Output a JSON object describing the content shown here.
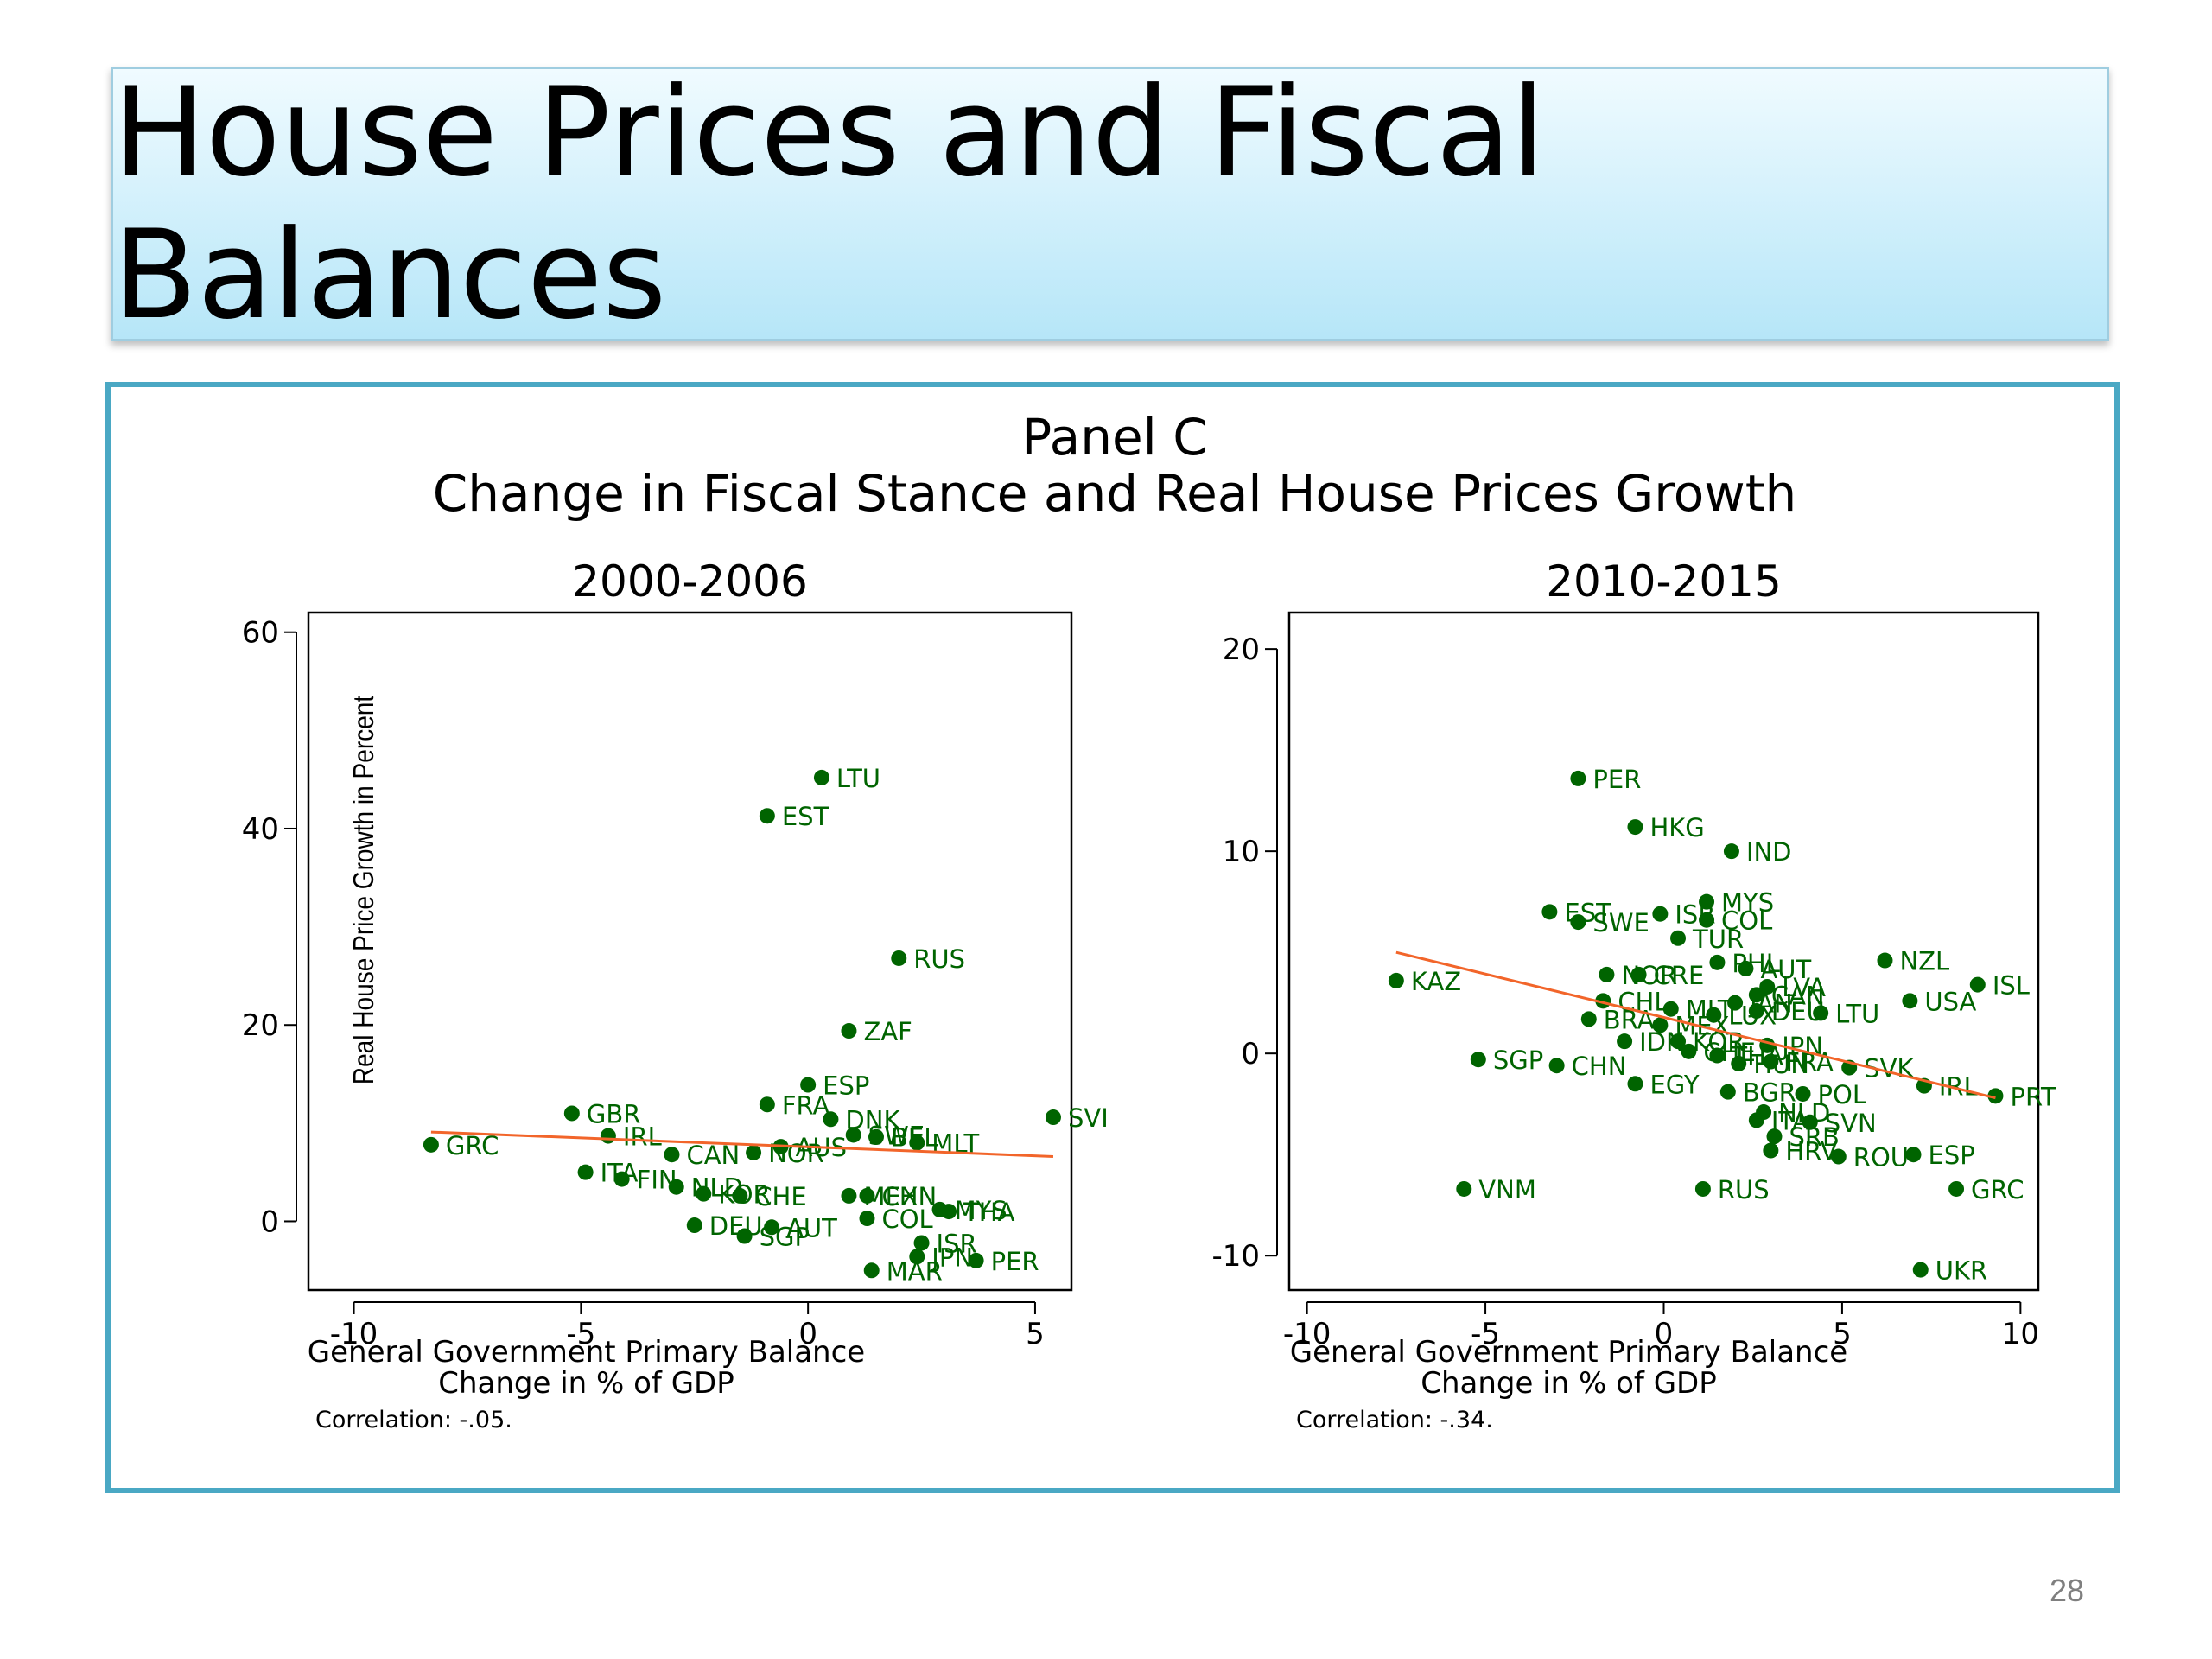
{
  "slide": {
    "title": "House Prices and Fiscal Balances",
    "page_number": "28"
  },
  "figure": {
    "title": "Panel C",
    "subtitle": "Change in Fiscal Stance and Real House Prices Growth"
  },
  "colors": {
    "point": "#006400",
    "label": "#006400",
    "fit_line": "#f2652a",
    "frame": "#4aa8c4"
  },
  "chart_data": [
    {
      "type": "scatter",
      "title": "2000-2006",
      "xlabel": "General Government Primary Balance\nChange in % of GDP",
      "ylabel": "Real House Price Growth in Percent",
      "xlim": [
        -11,
        5.8
      ],
      "ylim": [
        -7,
        62
      ],
      "xticks": [
        -10,
        -5,
        0,
        5
      ],
      "yticks": [
        0,
        20,
        40,
        60
      ],
      "note": "Correlation: -.05.",
      "fit_line": {
        "x": [
          -8.3,
          5.4
        ],
        "y": [
          9.1,
          6.6
        ]
      },
      "points": [
        {
          "label": "LTU",
          "x": 0.3,
          "y": 45.2
        },
        {
          "label": "EST",
          "x": -0.9,
          "y": 41.3
        },
        {
          "label": "RUS",
          "x": 2.0,
          "y": 26.8
        },
        {
          "label": "ZAF",
          "x": 0.9,
          "y": 19.4
        },
        {
          "label": "ESP",
          "x": 0.0,
          "y": 13.9
        },
        {
          "label": "FRA",
          "x": -0.9,
          "y": 11.9
        },
        {
          "label": "GBR",
          "x": -5.2,
          "y": 11.0
        },
        {
          "label": "SVI",
          "x": 5.4,
          "y": 10.6
        },
        {
          "label": "DNK",
          "x": 0.5,
          "y": 10.4
        },
        {
          "label": "IRL",
          "x": -4.4,
          "y": 8.7
        },
        {
          "label": "SWE",
          "x": 1.0,
          "y": 8.8
        },
        {
          "label": "BEL",
          "x": 1.5,
          "y": 8.6
        },
        {
          "label": "MLT",
          "x": 2.4,
          "y": 8.0
        },
        {
          "label": "GRC",
          "x": -8.3,
          "y": 7.8
        },
        {
          "label": "AUS",
          "x": -0.6,
          "y": 7.6
        },
        {
          "label": "NOR",
          "x": -1.2,
          "y": 7.0
        },
        {
          "label": "CAN",
          "x": -3.0,
          "y": 6.8
        },
        {
          "label": "ITA",
          "x": -4.9,
          "y": 5.0
        },
        {
          "label": "FIN",
          "x": -4.1,
          "y": 4.3
        },
        {
          "label": "NLD",
          "x": -2.9,
          "y": 3.5
        },
        {
          "label": "KOR",
          "x": -2.3,
          "y": 2.8
        },
        {
          "label": "CHE",
          "x": -1.5,
          "y": 2.6
        },
        {
          "label": "MEX",
          "x": 0.9,
          "y": 2.6
        },
        {
          "label": "CHN",
          "x": 1.3,
          "y": 2.6
        },
        {
          "label": "MYS",
          "x": 2.9,
          "y": 1.2
        },
        {
          "label": "THA",
          "x": 3.1,
          "y": 1.0
        },
        {
          "label": "COL",
          "x": 1.3,
          "y": 0.3
        },
        {
          "label": "DEU",
          "x": -2.5,
          "y": -0.4
        },
        {
          "label": "AUT",
          "x": -0.8,
          "y": -0.6
        },
        {
          "label": "SGP",
          "x": -1.4,
          "y": -1.5
        },
        {
          "label": "ISR",
          "x": 2.5,
          "y": -2.2
        },
        {
          "label": "JPN",
          "x": 2.4,
          "y": -3.6
        },
        {
          "label": "PER",
          "x": 3.7,
          "y": -4.0
        },
        {
          "label": "MAR",
          "x": 1.4,
          "y": -5.0
        }
      ]
    },
    {
      "type": "scatter",
      "title": "2010-2015",
      "xlabel": "General Government Primary Balance\nChange in % of GDP",
      "ylabel": "",
      "xlim": [
        -10.5,
        10.5
      ],
      "ylim": [
        -11.7,
        21.8
      ],
      "xticks": [
        -10,
        -5,
        0,
        5,
        10
      ],
      "yticks": [
        -10,
        0,
        10,
        20
      ],
      "note": "Correlation: -.34.",
      "fit_line": {
        "x": [
          -7.5,
          9.3
        ],
        "y": [
          5.0,
          -2.2
        ]
      },
      "points": [
        {
          "label": "PER",
          "x": -2.4,
          "y": 13.6
        },
        {
          "label": "HKG",
          "x": -0.8,
          "y": 11.2
        },
        {
          "label": "IND",
          "x": 1.9,
          "y": 10.0
        },
        {
          "label": "MYS",
          "x": 1.2,
          "y": 7.5
        },
        {
          "label": "EST",
          "x": -3.2,
          "y": 7.0
        },
        {
          "label": "ISR",
          "x": -0.1,
          "y": 6.9
        },
        {
          "label": "COL",
          "x": 1.2,
          "y": 6.6
        },
        {
          "label": "SWE",
          "x": -2.4,
          "y": 6.5
        },
        {
          "label": "TUR",
          "x": 0.4,
          "y": 5.7
        },
        {
          "label": "NZL",
          "x": 6.2,
          "y": 4.6
        },
        {
          "label": "PHL",
          "x": 1.5,
          "y": 4.5
        },
        {
          "label": "AUT",
          "x": 2.3,
          "y": 4.2
        },
        {
          "label": "NOR",
          "x": -1.6,
          "y": 3.9
        },
        {
          "label": "CRE",
          "x": -0.7,
          "y": 3.9
        },
        {
          "label": "KAZ",
          "x": -7.5,
          "y": 3.6
        },
        {
          "label": "ISL",
          "x": 8.8,
          "y": 3.4
        },
        {
          "label": "LVA",
          "x": 2.9,
          "y": 3.3
        },
        {
          "label": "CAN",
          "x": 2.6,
          "y": 2.9
        },
        {
          "label": "CHL",
          "x": -1.7,
          "y": 2.6
        },
        {
          "label": "USA",
          "x": 6.9,
          "y": 2.6
        },
        {
          "label": "JAN",
          "x": 2.0,
          "y": 2.5
        },
        {
          "label": "MLT",
          "x": 0.2,
          "y": 2.2
        },
        {
          "label": "DEU",
          "x": 2.6,
          "y": 2.1
        },
        {
          "label": "LTU",
          "x": 4.4,
          "y": 2.0
        },
        {
          "label": "LUX",
          "x": 1.4,
          "y": 1.9
        },
        {
          "label": "BRA",
          "x": -2.1,
          "y": 1.7
        },
        {
          "label": "MEX",
          "x": -0.1,
          "y": 1.4
        },
        {
          "label": "IDN",
          "x": -1.1,
          "y": 0.6
        },
        {
          "label": "KOR",
          "x": 0.4,
          "y": 0.6
        },
        {
          "label": "JPN",
          "x": 2.9,
          "y": 0.4
        },
        {
          "label": "CHE",
          "x": 0.7,
          "y": 0.1
        },
        {
          "label": "THA",
          "x": 1.5,
          "y": -0.1
        },
        {
          "label": "SGP",
          "x": -5.2,
          "y": -0.3
        },
        {
          "label": "FRA",
          "x": 3.0,
          "y": -0.4
        },
        {
          "label": "HUN",
          "x": 2.1,
          "y": -0.5
        },
        {
          "label": "CHN",
          "x": -3.0,
          "y": -0.6
        },
        {
          "label": "SVK",
          "x": 5.2,
          "y": -0.7
        },
        {
          "label": "EGY",
          "x": -0.8,
          "y": -1.5
        },
        {
          "label": "IRL",
          "x": 7.3,
          "y": -1.6
        },
        {
          "label": "BGR",
          "x": 1.8,
          "y": -1.9
        },
        {
          "label": "POL",
          "x": 3.9,
          "y": -2.0
        },
        {
          "label": "PRT",
          "x": 9.3,
          "y": -2.1
        },
        {
          "label": "NLD",
          "x": 2.8,
          "y": -2.9
        },
        {
          "label": "ITA",
          "x": 2.6,
          "y": -3.3
        },
        {
          "label": "SVN",
          "x": 4.1,
          "y": -3.4
        },
        {
          "label": "SRB",
          "x": 3.1,
          "y": -4.1
        },
        {
          "label": "HRV",
          "x": 3.0,
          "y": -4.8
        },
        {
          "label": "ROU",
          "x": 4.9,
          "y": -5.1
        },
        {
          "label": "ESP",
          "x": 7.0,
          "y": -5.0
        },
        {
          "label": "VNM",
          "x": -5.6,
          "y": -6.7
        },
        {
          "label": "RUS",
          "x": 1.1,
          "y": -6.7
        },
        {
          "label": "GRC",
          "x": 8.2,
          "y": -6.7
        },
        {
          "label": "UKR",
          "x": 7.2,
          "y": -10.7
        }
      ]
    }
  ]
}
